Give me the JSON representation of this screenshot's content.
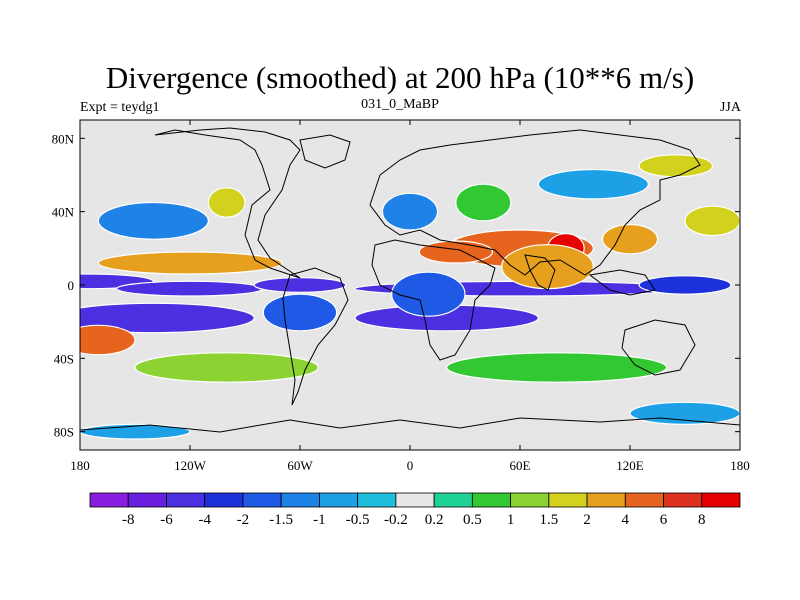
{
  "chart_data": {
    "type": "heatmap",
    "title": "Divergence (smoothed) at 200 hPa (10**6 m/s)",
    "subtitle_left": "Expt = teydg1",
    "subtitle_center": "031_0_MaBP",
    "subtitle_right": "JJA",
    "x_axis": {
      "range": [
        -180,
        180
      ],
      "ticks": [
        {
          "value": -180,
          "label": "180"
        },
        {
          "value": -120,
          "label": "120W"
        },
        {
          "value": -60,
          "label": "60W"
        },
        {
          "value": 0,
          "label": "0"
        },
        {
          "value": 60,
          "label": "60E"
        },
        {
          "value": 120,
          "label": "120E"
        },
        {
          "value": 180,
          "label": "180"
        }
      ]
    },
    "y_axis": {
      "range": [
        -90,
        90
      ],
      "ticks": [
        {
          "value": 80,
          "label": "80N"
        },
        {
          "value": 40,
          "label": "40N"
        },
        {
          "value": 0,
          "label": "0"
        },
        {
          "value": -40,
          "label": "40S"
        },
        {
          "value": -80,
          "label": "80S"
        }
      ]
    },
    "colorbar": {
      "labels": [
        "-8",
        "-6",
        "-4",
        "-2",
        "-1.5",
        "-1",
        "-0.5",
        "-0.2",
        "0.2",
        "0.5",
        "1",
        "1.5",
        "2",
        "4",
        "6",
        "8"
      ],
      "colors": [
        "#8a1ee0",
        "#6a1ee0",
        "#4a30e0",
        "#1e32dc",
        "#1e5ae6",
        "#1e82e6",
        "#1ea0e6",
        "#1ebedc",
        "#e6e6e6",
        "#1ed296",
        "#32c832",
        "#8cd232",
        "#d2d21e",
        "#e6a01e",
        "#e6641e",
        "#dc321e",
        "#e60000"
      ]
    },
    "regions": [
      {
        "lon": -175,
        "lat": 2,
        "rx": 35,
        "ry": 4,
        "level": 2
      },
      {
        "lon": -120,
        "lat": -2,
        "rx": 40,
        "ry": 4,
        "level": 2
      },
      {
        "lon": -60,
        "lat": 0,
        "rx": 25,
        "ry": 4,
        "level": 2
      },
      {
        "lon": 60,
        "lat": -2,
        "rx": 90,
        "ry": 4,
        "level": 2
      },
      {
        "lon": -140,
        "lat": -18,
        "rx": 55,
        "ry": 8,
        "level": 2
      },
      {
        "lon": 20,
        "lat": -18,
        "rx": 50,
        "ry": 7,
        "level": 2
      },
      {
        "lon": -60,
        "lat": -15,
        "rx": 20,
        "ry": 10,
        "level": 4
      },
      {
        "lon": 10,
        "lat": -5,
        "rx": 20,
        "ry": 12,
        "level": 4
      },
      {
        "lon": 150,
        "lat": 0,
        "rx": 25,
        "ry": 5,
        "level": 3
      },
      {
        "lon": 60,
        "lat": 20,
        "rx": 40,
        "ry": 10,
        "level": 14
      },
      {
        "lon": 25,
        "lat": 18,
        "rx": 20,
        "ry": 6,
        "level": 14
      },
      {
        "lon": 85,
        "lat": 20,
        "rx": 10,
        "ry": 8,
        "level": 16
      },
      {
        "lon": 75,
        "lat": 10,
        "rx": 25,
        "ry": 12,
        "level": 13
      },
      {
        "lon": -120,
        "lat": 12,
        "rx": 50,
        "ry": 6,
        "level": 13
      },
      {
        "lon": -170,
        "lat": -30,
        "rx": 20,
        "ry": 8,
        "level": 14
      },
      {
        "lon": -100,
        "lat": 45,
        "rx": 10,
        "ry": 8,
        "level": 12
      },
      {
        "lon": 145,
        "lat": 65,
        "rx": 20,
        "ry": 6,
        "level": 12
      },
      {
        "lon": 165,
        "lat": 35,
        "rx": 15,
        "ry": 8,
        "level": 12
      },
      {
        "lon": 120,
        "lat": 25,
        "rx": 15,
        "ry": 8,
        "level": 13
      },
      {
        "lon": -140,
        "lat": 35,
        "rx": 30,
        "ry": 10,
        "level": 5
      },
      {
        "lon": 0,
        "lat": 40,
        "rx": 15,
        "ry": 10,
        "level": 5
      },
      {
        "lon": 100,
        "lat": 55,
        "rx": 30,
        "ry": 8,
        "level": 6
      },
      {
        "lon": 40,
        "lat": 45,
        "rx": 15,
        "ry": 10,
        "level": 10
      },
      {
        "lon": 80,
        "lat": -45,
        "rx": 60,
        "ry": 8,
        "level": 10
      },
      {
        "lon": -100,
        "lat": -45,
        "rx": 50,
        "ry": 8,
        "level": 11
      },
      {
        "lon": 150,
        "lat": -70,
        "rx": 30,
        "ry": 6,
        "level": 6
      },
      {
        "lon": -150,
        "lat": -80,
        "rx": 30,
        "ry": 4,
        "level": 6
      }
    ],
    "contour_levels": [
      -8,
      -6,
      -4,
      -2,
      -1.5,
      -1,
      -0.5,
      -0.2,
      0.2,
      0.5,
      1,
      1.5,
      2,
      4,
      6,
      8
    ]
  }
}
